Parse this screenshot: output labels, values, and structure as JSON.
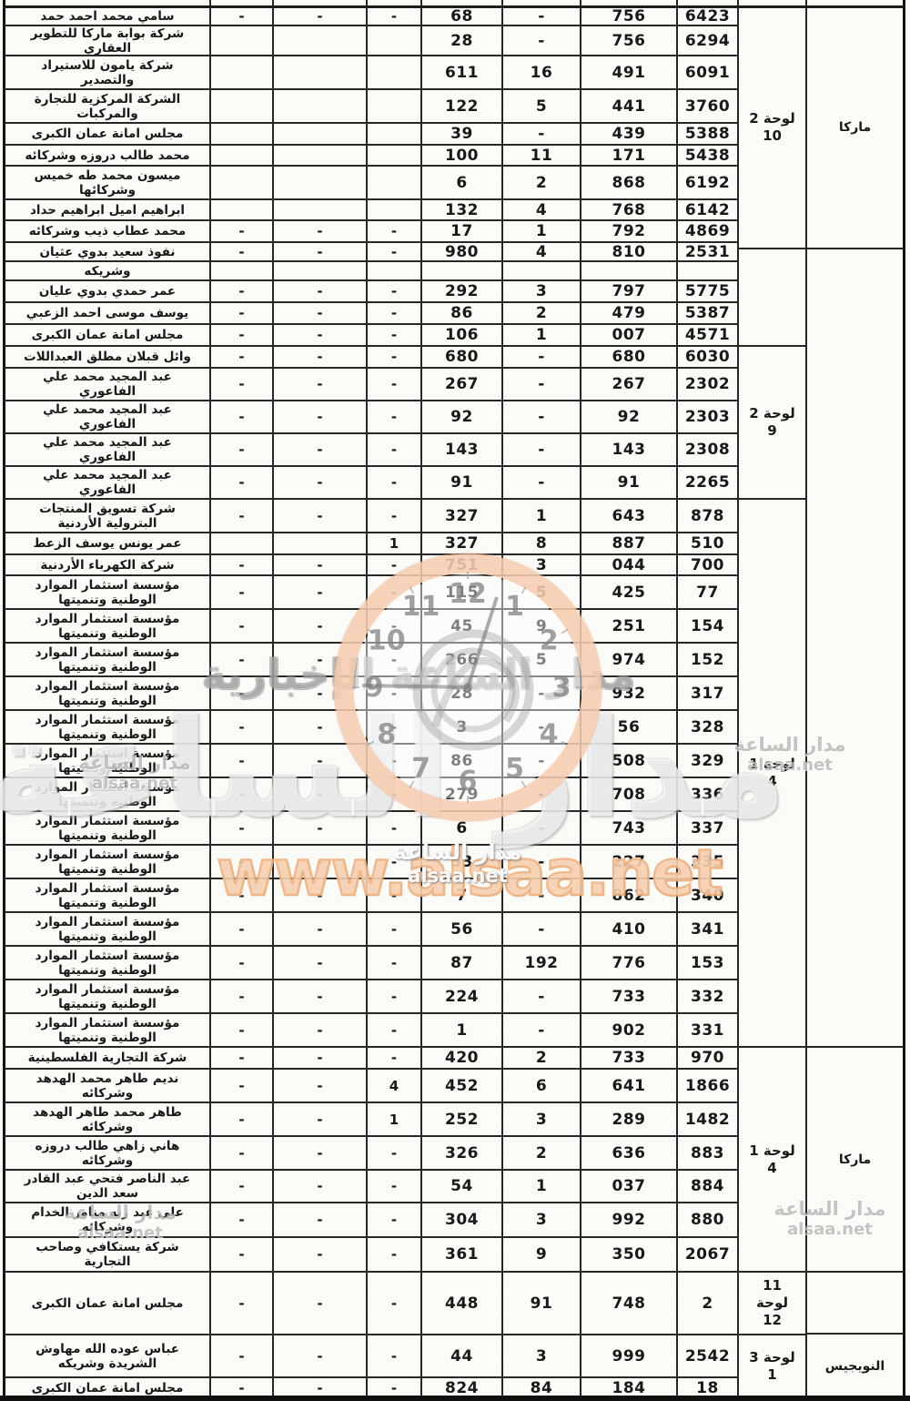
{
  "document": {
    "kind": "scanned-arabic-table",
    "border_color": "#2a2a2a"
  },
  "watermark": {
    "big_text": "مدار الساعة",
    "band_text": "مدار الساعة الإخبارية",
    "site_url": "www.alsaa.net",
    "center_label": "مدار الساعة",
    "center_site": "alsaa.net",
    "side_label": "مدار الساعة",
    "side_site": "alsaa.net",
    "clock_numbers": [
      "12",
      "1",
      "2",
      "3",
      "4",
      "5",
      "6",
      "7",
      "8",
      "9",
      "10",
      "11"
    ],
    "ring_peach": "#f6cdb0",
    "accent_orange": "#f29962"
  },
  "table": {
    "rows": [
      {
        "name": [
          "سامي محمد احمد حمد"
        ],
        "d1": "-",
        "d2": "-",
        "d3": "-",
        "v1": "68",
        "v2": "-",
        "v3": "756",
        "v4": "6423"
      },
      {
        "name": [
          "شركة بوابة ماركا للتطوير",
          "العقاري"
        ],
        "d1": "",
        "d2": "",
        "d3": "",
        "v1": "28",
        "v2": "-",
        "v3": "756",
        "v4": "6294"
      },
      {
        "name": [
          "شركة يامون للاستيراد",
          "والتصدير"
        ],
        "d1": "",
        "d2": "",
        "d3": "",
        "v1": "611",
        "v2": "16",
        "v3": "491",
        "v4": "6091"
      },
      {
        "name": [
          "الشركة المركزية للتجارة",
          "والمركبات"
        ],
        "d1": "",
        "d2": "",
        "d3": "",
        "v1": "122",
        "v2": "5",
        "v3": "441",
        "v4": "3760"
      },
      {
        "name": [
          "مجلس امانة عمان الكبرى"
        ],
        "d1": "",
        "d2": "",
        "d3": "",
        "v1": "39",
        "v2": "-",
        "v3": "439",
        "v4": "5388"
      },
      {
        "name": [
          "محمد طالب دروزه وشركائه"
        ],
        "d1": "",
        "d2": "",
        "d3": "",
        "v1": "100",
        "v2": "11",
        "v3": "171",
        "v4": "5438"
      },
      {
        "name": [
          "ميسون محمد طه خميس",
          "وشركائها"
        ],
        "d1": "",
        "d2": "",
        "d3": "",
        "v1": "6",
        "v2": "2",
        "v3": "868",
        "v4": "6192"
      },
      {
        "name": [
          "ابراهيم اميل ابراهيم حداد"
        ],
        "d1": "",
        "d2": "",
        "d3": "",
        "v1": "132",
        "v2": "4",
        "v3": "768",
        "v4": "6142"
      },
      {
        "name": [
          "محمد عطاب ذيب وشركائه"
        ],
        "d1": "-",
        "d2": "-",
        "d3": "-",
        "v1": "17",
        "v2": "1",
        "v3": "792",
        "v4": "4869"
      },
      {
        "name": [
          "نفوذ سعيد بدوي عثيان"
        ],
        "d1": "-",
        "d2": "-",
        "d3": "-",
        "v1": "980",
        "v2": "4",
        "v3": "810",
        "v4": "2531"
      },
      {
        "name": [
          "وشريكه"
        ],
        "d1": "",
        "d2": "",
        "d3": "",
        "v1": "",
        "v2": "",
        "v3": "",
        "v4": ""
      },
      {
        "name": [
          "عمر حمدي بدوي عليان"
        ],
        "d1": "-",
        "d2": "-",
        "d3": "-",
        "v1": "292",
        "v2": "3",
        "v3": "797",
        "v4": "5775"
      },
      {
        "name": [
          "يوسف موسى احمد الزعبي"
        ],
        "d1": "-",
        "d2": "-",
        "d3": "-",
        "v1": "86",
        "v2": "2",
        "v3": "479",
        "v4": "5387"
      },
      {
        "name": [
          "مجلس امانة عمان الكبرى"
        ],
        "d1": "-",
        "d2": "-",
        "d3": "-",
        "v1": "106",
        "v2": "1",
        "v3": "007",
        "v4": "4571"
      },
      {
        "name": [
          "وائل قبلان مطلق العبداللات"
        ],
        "d1": "-",
        "d2": "-",
        "d3": "-",
        "v1": "680",
        "v2": "-",
        "v3": "680",
        "v4": "6030"
      },
      {
        "name": [
          "عبد المجيد محمد علي",
          "الفاعوري"
        ],
        "d1": "-",
        "d2": "-",
        "d3": "-",
        "v1": "267",
        "v2": "-",
        "v3": "267",
        "v4": "2302"
      },
      {
        "name": [
          "عبد المجيد محمد علي",
          "الفاعوري"
        ],
        "d1": "-",
        "d2": "-",
        "d3": "-",
        "v1": "92",
        "v2": "-",
        "v3": "92",
        "v4": "2303"
      },
      {
        "name": [
          "عبد المجيد محمد علي",
          "الفاعوري"
        ],
        "d1": "-",
        "d2": "-",
        "d3": "-",
        "v1": "143",
        "v2": "-",
        "v3": "143",
        "v4": "2308"
      },
      {
        "name": [
          "عبد المجيد محمد علي",
          "الفاعوري"
        ],
        "d1": "-",
        "d2": "-",
        "d3": "-",
        "v1": "91",
        "v2": "-",
        "v3": "91",
        "v4": "2265"
      },
      {
        "name": [
          "شركة تسويق المنتجات",
          "البترولية الأردنية"
        ],
        "d1": "-",
        "d2": "-",
        "d3": "-",
        "v1": "327",
        "v2": "1",
        "v3": "643",
        "v4": "878"
      },
      {
        "name": [
          "عمر يونس يوسف الزعط"
        ],
        "d1": "",
        "d2": "",
        "d3": "1",
        "v1": "327",
        "v2": "8",
        "v3": "887",
        "v4": "510"
      },
      {
        "name": [
          "شركة الكهرباء الأردنية"
        ],
        "d1": "-",
        "d2": "-",
        "d3": "-",
        "v1": "751",
        "v2": "3",
        "v3": "044",
        "v4": "700"
      },
      {
        "name": [
          "مؤسسة استثمار الموارد",
          "الوطنية وتنميتها"
        ],
        "d1": "-",
        "d2": "-",
        "d3": "-",
        "v1": "115",
        "v2": "5",
        "v3": "425",
        "v4": "77"
      },
      {
        "name": [
          "مؤسسة استثمار الموارد",
          "الوطنية وتنميتها"
        ],
        "d1": "-",
        "d2": "-",
        "d3": "-",
        "v1": "45",
        "v2": "9",
        "v3": "251",
        "v4": "154"
      },
      {
        "name": [
          "مؤسسة استثمار الموارد",
          "الوطنية وتنميتها"
        ],
        "d1": "-",
        "d2": "-",
        "d3": "-",
        "v1": "266",
        "v2": "5",
        "v3": "974",
        "v4": "152"
      },
      {
        "name": [
          "مؤسسة استثمار الموارد",
          "الوطنية وتنميتها"
        ],
        "d1": "-",
        "d2": "-",
        "d3": "-",
        "v1": "28",
        "v2": "-",
        "v3": "932",
        "v4": "317"
      },
      {
        "name": [
          "مؤسسة استثمار الموارد",
          "الوطنية وتنميتها"
        ],
        "d1": "-",
        "d2": "-",
        "d3": "-",
        "v1": "3",
        "v2": "-",
        "v3": "56",
        "v4": "328"
      },
      {
        "name": [
          "مؤسسة استثمار الموارد",
          "الوطنية وتنميتها"
        ],
        "d1": "-",
        "d2": "-",
        "d3": "-",
        "v1": "86",
        "v2": "-",
        "v3": "508",
        "v4": "329"
      },
      {
        "name": [
          "مؤسسة استثمار الموارد",
          "الوطنية وتنميتها"
        ],
        "d1": "-",
        "d2": "-",
        "d3": "-",
        "v1": "279",
        "v2": "-",
        "v3": "708",
        "v4": "336"
      },
      {
        "name": [
          "مؤسسة استثمار الموارد",
          "الوطنية وتنميتها"
        ],
        "d1": "-",
        "d2": "-",
        "d3": "-",
        "v1": "6",
        "v2": "-",
        "v3": "743",
        "v4": "337"
      },
      {
        "name": [
          "مؤسسة استثمار الموارد",
          "الوطنية وتنميتها"
        ],
        "d1": "-",
        "d2": "-",
        "d3": "-",
        "v1": "53",
        "v2": "-",
        "v3": "227",
        "v4": "335"
      },
      {
        "name": [
          "مؤسسة استثمار الموارد",
          "الوطنية وتنميتها"
        ],
        "d1": "-",
        "d2": "-",
        "d3": "-",
        "v1": "7",
        "v2": "-",
        "v3": "862",
        "v4": "340"
      },
      {
        "name": [
          "مؤسسة استثمار الموارد",
          "الوطنية وتنميتها"
        ],
        "d1": "-",
        "d2": "-",
        "d3": "-",
        "v1": "56",
        "v2": "-",
        "v3": "410",
        "v4": "341"
      },
      {
        "name": [
          "مؤسسة استثمار الموارد",
          "الوطنية وتنميتها"
        ],
        "d1": "-",
        "d2": "-",
        "d3": "-",
        "v1": "87",
        "v2": "192",
        "v3": "776",
        "v4": "153"
      },
      {
        "name": [
          "مؤسسة استثمار الموارد",
          "الوطنية وتنميتها"
        ],
        "d1": "-",
        "d2": "-",
        "d3": "-",
        "v1": "224",
        "v2": "-",
        "v3": "733",
        "v4": "332"
      },
      {
        "name": [
          "مؤسسة استثمار الموارد",
          "الوطنية وتنميتها"
        ],
        "d1": "-",
        "d2": "-",
        "d3": "-",
        "v1": "1",
        "v2": "-",
        "v3": "902",
        "v4": "331"
      },
      {
        "name": [
          "شركة التجارية الفلسطينية"
        ],
        "d1": "-",
        "d2": "-",
        "d3": "-",
        "v1": "420",
        "v2": "2",
        "v3": "733",
        "v4": "970"
      },
      {
        "name": [
          "نديم طاهر محمد الهدهد",
          "وشركائه"
        ],
        "d1": "-",
        "d2": "-",
        "d3": "4",
        "v1": "452",
        "v2": "6",
        "v3": "641",
        "v4": "1866"
      },
      {
        "name": [
          "طاهر محمد طاهر الهدهد",
          "وشركائه"
        ],
        "d1": "-",
        "d2": "-",
        "d3": "1",
        "v1": "252",
        "v2": "3",
        "v3": "289",
        "v4": "1482"
      },
      {
        "name": [
          "هاني زاهي طالب دروزه",
          "وشركائه"
        ],
        "d1": "-",
        "d2": "-",
        "d3": "-",
        "v1": "326",
        "v2": "2",
        "v3": "636",
        "v4": "883"
      },
      {
        "name": [
          "عبد الناصر فتحي عبد القادر",
          "سعد الدين"
        ],
        "d1": "-",
        "d2": "-",
        "d3": "-",
        "v1": "54",
        "v2": "1",
        "v3": "037",
        "v4": "884"
      },
      {
        "name": [
          "علي عبد ربه مناور الخدام",
          "وشركائه"
        ],
        "d1": "-",
        "d2": "-",
        "d3": "-",
        "v1": "304",
        "v2": "3",
        "v3": "992",
        "v4": "880"
      },
      {
        "name": [
          "شركة يستكافي وصاحب",
          "التجارية"
        ],
        "d1": "-",
        "d2": "-",
        "d3": "-",
        "v1": "361",
        "v2": "9",
        "v3": "350",
        "v4": "2067"
      },
      {
        "name": [
          "مجلس امانة عمان الكبرى"
        ],
        "d1": "-",
        "d2": "-",
        "d3": "-",
        "v1": "448",
        "v2": "91",
        "v3": "748",
        "v4": "2"
      },
      {
        "name": [
          "عباس عوده الله مهاوش",
          "الشريدة وشريكه"
        ],
        "d1": "-",
        "d2": "-",
        "d3": "-",
        "v1": "44",
        "v2": "3",
        "v3": "999",
        "v4": "2542"
      },
      {
        "name": [
          "مجلس امانة عمان الكبرى"
        ],
        "d1": "-",
        "d2": "-",
        "d3": "-",
        "v1": "824",
        "v2": "84",
        "v3": "184",
        "v4": "18"
      }
    ],
    "group_cells": [
      {
        "lines": [
          "لوحة 2",
          "10"
        ]
      },
      {
        "lines": []
      },
      {
        "lines": [
          "لوحة 2",
          "9"
        ]
      },
      {
        "lines": [
          "لوحة 1",
          "4"
        ]
      },
      {
        "lines": [
          "لوحة 1",
          "4"
        ]
      },
      {
        "lines": [
          "11",
          "لوحة",
          "12"
        ]
      },
      {
        "lines": [
          "لوحة 3",
          "1"
        ]
      }
    ],
    "region_cells": [
      "ماركا",
      "",
      "ماركا",
      "",
      "النويجيس"
    ]
  }
}
